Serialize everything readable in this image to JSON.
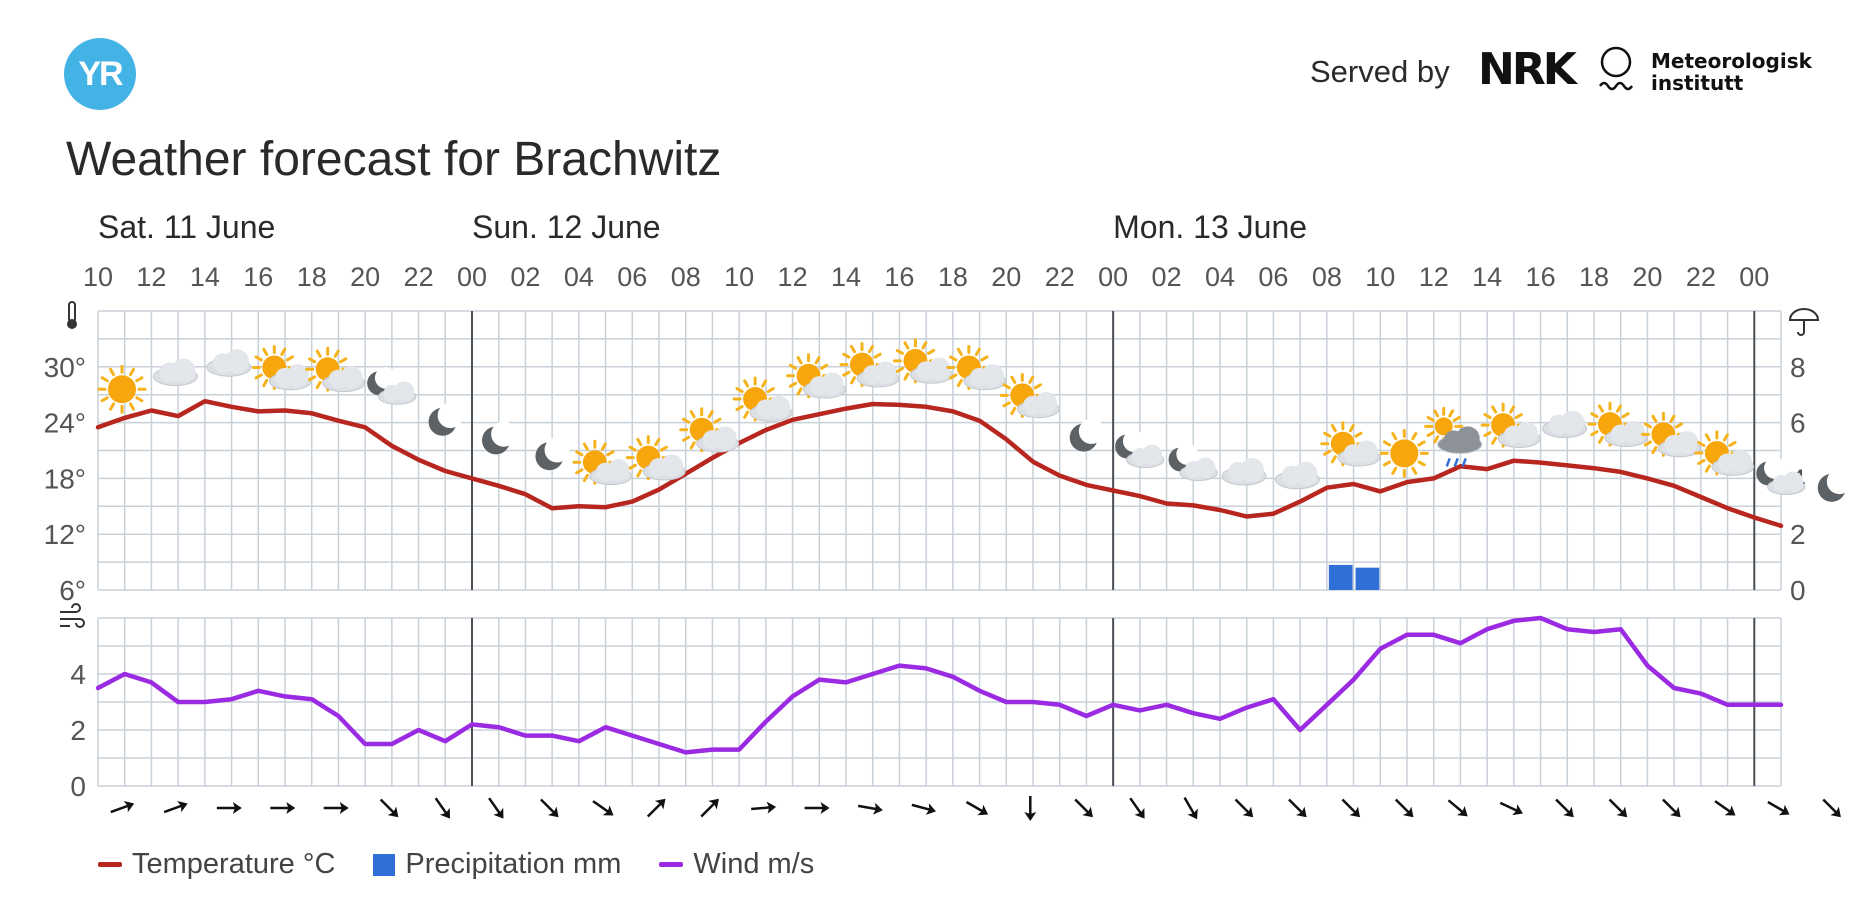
{
  "header": {
    "logo_text": "YR",
    "served_by": "Served by",
    "nrk_text": "NRK",
    "met_text_line1": "Meteorologisk",
    "met_text_line2": "institutt",
    "title": "Weather forecast for Brachwitz"
  },
  "colors": {
    "temperature": "#b7261f",
    "precipitation": "#2f6fd6",
    "wind": "#9b2be3",
    "grid": "#c8d0d8",
    "yr_blue": "#43b3e6"
  },
  "legend": {
    "temperature": "Temperature °C",
    "precipitation": "Precipitation mm",
    "wind": "Wind m/s"
  },
  "chart_data": {
    "type": "line",
    "days": [
      {
        "label": "Sat. 11 June",
        "start_index": 0
      },
      {
        "label": "Sun. 12 June",
        "start_index": 14
      },
      {
        "label": "Mon. 13 June",
        "start_index": 38
      }
    ],
    "x_tick_labels": [
      "10",
      "12",
      "14",
      "16",
      "18",
      "20",
      "22",
      "00",
      "02",
      "04",
      "06",
      "08",
      "10",
      "12",
      "14",
      "16",
      "18",
      "20",
      "22",
      "00",
      "02",
      "04",
      "06",
      "08",
      "10",
      "12",
      "14",
      "16",
      "18",
      "20",
      "22",
      "00"
    ],
    "temperature": {
      "axis_ticks": [
        "30°",
        "24°",
        "18°",
        "12°",
        "6°"
      ],
      "ylim": [
        6,
        36
      ],
      "values": [
        23.5,
        24.5,
        25.3,
        24.7,
        26.3,
        25.7,
        25.2,
        25.3,
        25.0,
        24.2,
        23.5,
        21.5,
        20.0,
        18.8,
        18.0,
        17.2,
        16.3,
        14.8,
        15.0,
        14.9,
        15.5,
        16.8,
        18.5,
        20.2,
        21.8,
        23.2,
        24.3,
        24.9,
        25.5,
        26.0,
        25.9,
        25.7,
        25.2,
        24.2,
        22.2,
        19.8,
        18.3,
        17.3,
        16.7,
        16.1,
        15.3,
        15.1,
        14.6,
        13.9,
        14.2,
        15.5,
        17.0,
        17.4,
        16.6,
        17.6,
        18.0,
        19.3,
        19.0,
        19.9,
        19.7,
        19.4,
        19.1,
        18.7,
        18.0,
        17.2,
        16.0,
        14.8,
        13.8,
        12.9
      ]
    },
    "precipitation": {
      "axis_ticks": [
        "8",
        "6",
        "4",
        "2",
        "0"
      ],
      "ylim": [
        0,
        10
      ],
      "bars": [
        {
          "hour_index": 46,
          "value": 0.9
        },
        {
          "hour_index": 47,
          "value": 0.8
        }
      ]
    },
    "wind": {
      "axis_ticks": [
        "4",
        "2",
        "0"
      ],
      "ylim": [
        0,
        6
      ],
      "values": [
        3.5,
        4.0,
        3.7,
        3.0,
        3.0,
        3.1,
        3.4,
        3.2,
        3.1,
        2.5,
        1.5,
        1.5,
        2.0,
        1.6,
        2.2,
        2.1,
        1.8,
        1.8,
        1.6,
        2.1,
        1.8,
        1.5,
        1.2,
        1.3,
        1.3,
        2.3,
        3.2,
        3.8,
        3.7,
        4.0,
        4.3,
        4.2,
        3.9,
        3.4,
        3.0,
        3.0,
        2.9,
        2.5,
        2.9,
        2.7,
        2.9,
        2.6,
        2.4,
        2.8,
        3.1,
        2.0,
        2.9,
        3.8,
        4.9,
        5.4,
        5.4,
        5.1,
        5.6,
        5.9,
        6.0,
        5.6,
        5.5,
        5.6,
        4.3,
        3.5,
        3.3,
        2.9,
        2.9,
        2.9
      ]
    },
    "weather_icons": [
      "sun",
      "cloud",
      "cloud",
      "sun-cloud",
      "sun-cloud",
      "moon-cloud",
      "moon",
      "moon",
      "moon",
      "sun-cloud",
      "sun-cloud",
      "sun-cloud",
      "sun-cloud",
      "sun-cloud",
      "sun-cloud",
      "sun-cloud",
      "sun-cloud",
      "sun-cloud",
      "moon",
      "moon-cloud",
      "moon-cloud",
      "cloud",
      "cloud",
      "sun-cloud",
      "sun",
      "cloud-rain",
      "sun-cloud",
      "cloud",
      "sun-cloud",
      "sun-cloud",
      "sun-cloud",
      "moon-cloud",
      "moon"
    ],
    "wind_directions_deg": [
      70,
      70,
      90,
      90,
      90,
      135,
      145,
      145,
      135,
      125,
      45,
      45,
      85,
      90,
      100,
      105,
      120,
      180,
      135,
      145,
      150,
      135,
      135,
      135,
      135,
      130,
      115,
      135,
      135,
      135,
      125,
      120,
      135
    ],
    "legend_placement": "bottom-left",
    "grid": true
  }
}
